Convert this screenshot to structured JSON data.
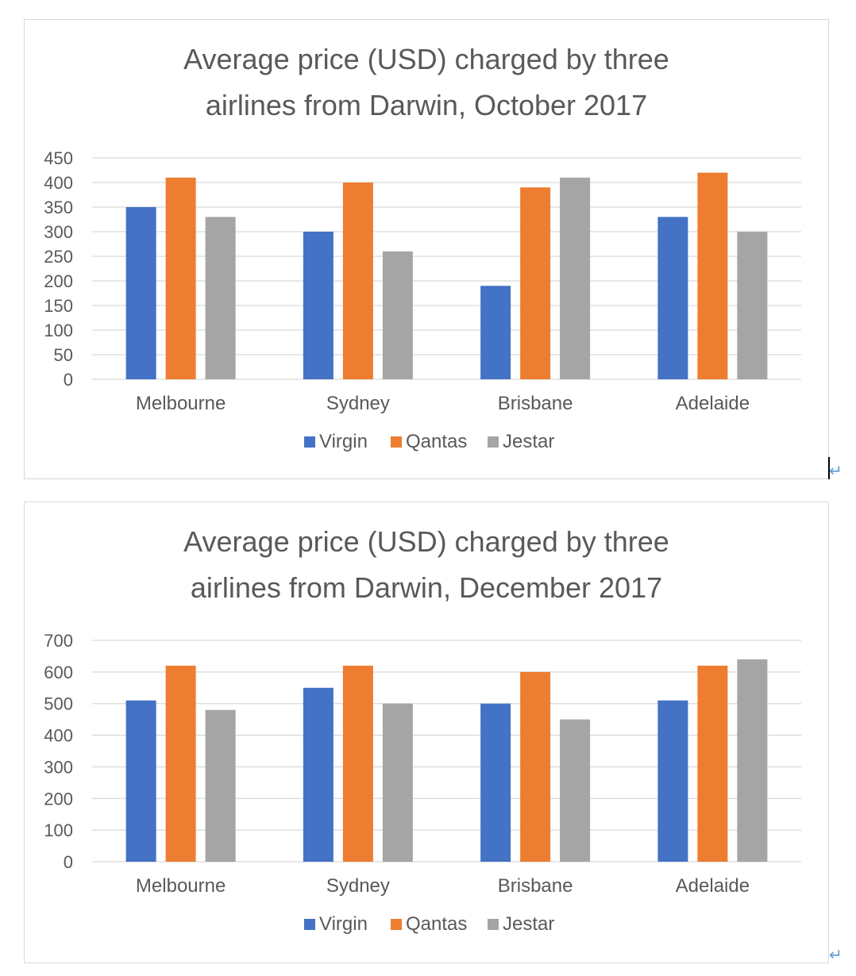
{
  "return_symbol": "↵",
  "chart_data": [
    {
      "type": "bar",
      "title_lines": [
        "Average price (USD) charged by three",
        "airlines from Darwin, October 2017"
      ],
      "categories": [
        "Melbourne",
        "Sydney",
        "Brisbane",
        "Adelaide"
      ],
      "series": [
        {
          "name": "Virgin",
          "color": "#4472c4",
          "values": [
            350,
            300,
            190,
            330
          ]
        },
        {
          "name": "Qantas",
          "color": "#ed7d31",
          "values": [
            410,
            400,
            390,
            420
          ]
        },
        {
          "name": "Jestar",
          "color": "#a5a5a5",
          "values": [
            330,
            260,
            410,
            300
          ]
        }
      ],
      "ylim": [
        0,
        450
      ],
      "yticks": [
        0,
        50,
        100,
        150,
        200,
        250,
        300,
        350,
        400,
        450
      ],
      "xlabel": "",
      "ylabel": "",
      "grid": true,
      "legend": "bottom"
    },
    {
      "type": "bar",
      "title_lines": [
        "Average price (USD) charged by three",
        "airlines from Darwin, December 2017"
      ],
      "categories": [
        "Melbourne",
        "Sydney",
        "Brisbane",
        "Adelaide"
      ],
      "series": [
        {
          "name": "Virgin",
          "color": "#4472c4",
          "values": [
            510,
            550,
            500,
            510
          ]
        },
        {
          "name": "Qantas",
          "color": "#ed7d31",
          "values": [
            620,
            620,
            600,
            620
          ]
        },
        {
          "name": "Jestar",
          "color": "#a5a5a5",
          "values": [
            480,
            500,
            450,
            640
          ]
        }
      ],
      "ylim": [
        0,
        700
      ],
      "yticks": [
        0,
        100,
        200,
        300,
        400,
        500,
        600,
        700
      ],
      "xlabel": "",
      "ylabel": "",
      "grid": true,
      "legend": "bottom"
    }
  ]
}
